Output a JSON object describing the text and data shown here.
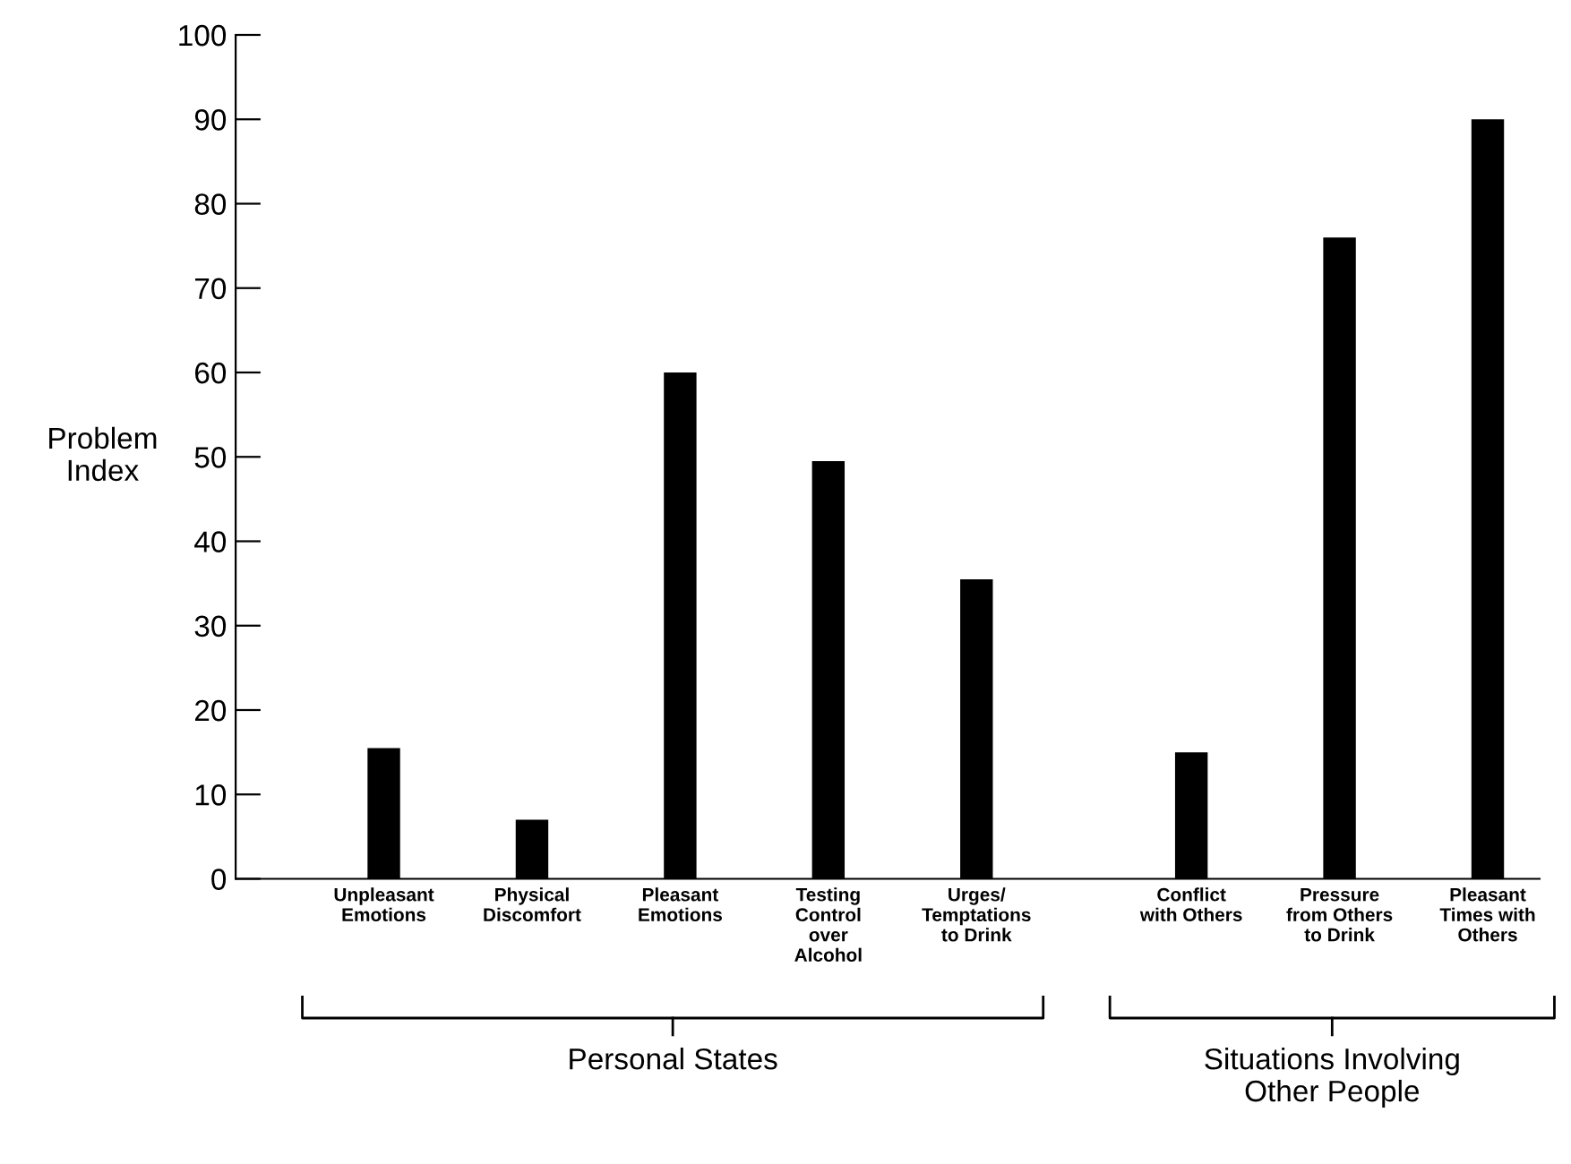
{
  "chart_data": {
    "type": "bar",
    "ylabel": "Problem\nIndex",
    "categories": [
      "Unpleasant\nEmotions",
      "Physical\nDiscomfort",
      "Pleasant\nEmotions",
      "Testing\nControl\nover\nAlcohol",
      "Urges/\nTemptations\nto Drink",
      "Conflict\nwith Others",
      "Pressure\nfrom Others\nto Drink",
      "Pleasant\nTimes with\nOthers"
    ],
    "values": [
      15.5,
      7,
      60,
      49.5,
      35.5,
      15,
      76,
      90
    ],
    "color": "#000000",
    "ylim": [
      0,
      100
    ],
    "yticks": [
      0,
      10,
      20,
      30,
      40,
      50,
      60,
      70,
      80,
      90,
      100
    ],
    "grid": false,
    "annotations": [
      "Personal States",
      "Situations Involving\nOther People"
    ]
  }
}
